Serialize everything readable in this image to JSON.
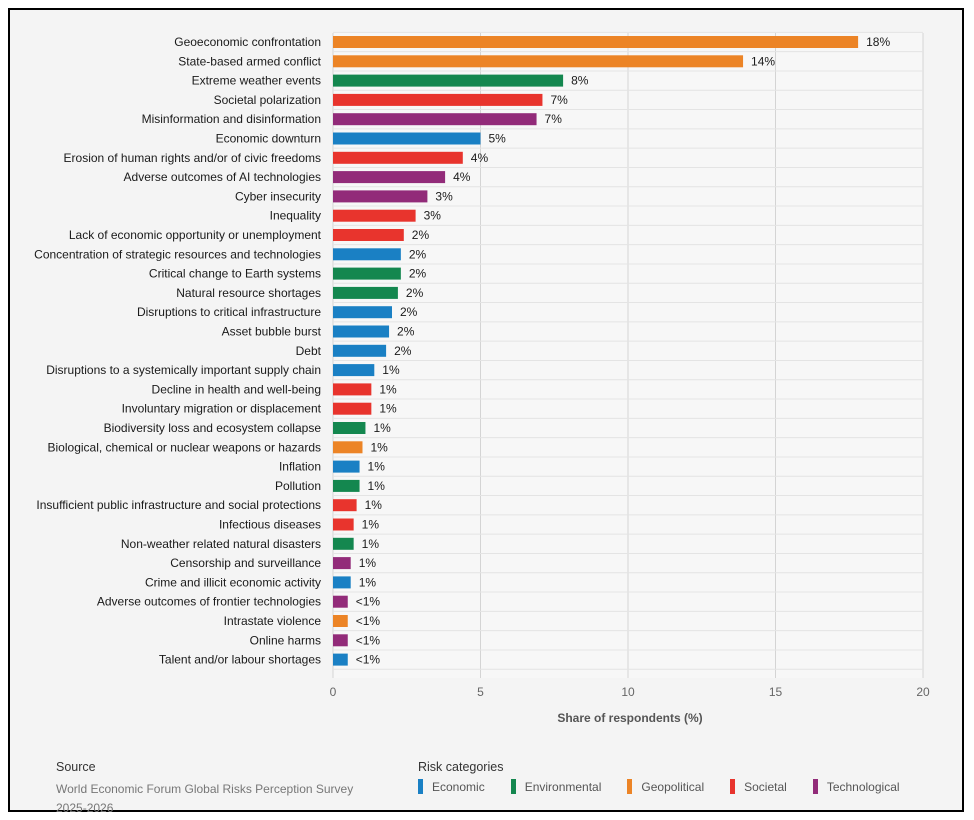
{
  "chart_data": {
    "type": "bar",
    "orientation": "horizontal",
    "xlabel": "Share of respondents (%)",
    "xlim": [
      0,
      20
    ],
    "xticks": [
      0,
      5,
      10,
      15,
      20
    ],
    "grid": true,
    "categories": [
      "Geoeconomic confrontation",
      "State-based armed conflict",
      "Extreme weather events",
      "Societal polarization",
      "Misinformation and disinformation",
      "Economic downturn",
      "Erosion of human rights and/or of civic freedoms",
      "Adverse outcomes of AI technologies",
      "Cyber insecurity",
      "Inequality",
      "Lack of economic opportunity or unemployment",
      "Concentration of strategic resources and technologies",
      "Critical change to Earth systems",
      "Natural resource shortages",
      "Disruptions to critical infrastructure",
      "Asset bubble burst",
      "Debt",
      "Disruptions to a systemically important supply chain",
      "Decline in health and well-being",
      "Involuntary migration or displacement",
      "Biodiversity loss and ecosystem collapse",
      "Biological, chemical or nuclear weapons or hazards",
      "Inflation",
      "Pollution",
      "Insufficient public infrastructure and social protections",
      "Infectious diseases",
      "Non-weather related natural disasters",
      "Censorship and surveillance",
      "Crime and illicit economic activity",
      "Adverse outcomes of frontier technologies",
      "Intrastate violence",
      "Online harms",
      "Talent and/or labour shortages"
    ],
    "values": [
      17.8,
      13.9,
      7.8,
      7.1,
      6.9,
      5.0,
      4.4,
      3.8,
      3.2,
      2.8,
      2.4,
      2.3,
      2.3,
      2.2,
      2.0,
      1.9,
      1.8,
      1.4,
      1.3,
      1.3,
      1.1,
      1.0,
      0.9,
      0.9,
      0.8,
      0.7,
      0.7,
      0.6,
      0.6,
      0.5,
      0.5,
      0.5,
      0.5
    ],
    "value_labels": [
      "18%",
      "14%",
      "8%",
      "7%",
      "7%",
      "5%",
      "4%",
      "4%",
      "3%",
      "3%",
      "2%",
      "2%",
      "2%",
      "2%",
      "2%",
      "2%",
      "2%",
      "1%",
      "1%",
      "1%",
      "1%",
      "1%",
      "1%",
      "1%",
      "1%",
      "1%",
      "1%",
      "1%",
      "1%",
      "<1%",
      "<1%",
      "<1%",
      "<1%"
    ],
    "risk_category": [
      "Geopolitical",
      "Geopolitical",
      "Environmental",
      "Societal",
      "Technological",
      "Economic",
      "Societal",
      "Technological",
      "Technological",
      "Societal",
      "Societal",
      "Economic",
      "Environmental",
      "Environmental",
      "Economic",
      "Economic",
      "Economic",
      "Economic",
      "Societal",
      "Societal",
      "Environmental",
      "Geopolitical",
      "Economic",
      "Environmental",
      "Societal",
      "Societal",
      "Environmental",
      "Technological",
      "Economic",
      "Technological",
      "Geopolitical",
      "Technological",
      "Economic"
    ],
    "category_colors": {
      "Economic": "#1a80c4",
      "Environmental": "#14874f",
      "Geopolitical": "#ec8426",
      "Societal": "#e8342d",
      "Technological": "#922b79"
    }
  },
  "footer": {
    "source_heading": "Source",
    "source_text": "World Economic Forum Global Risks Perception Survey 2025-2026"
  },
  "legend": {
    "heading": "Risk categories",
    "items": [
      {
        "label": "Economic",
        "color": "#1a80c4"
      },
      {
        "label": "Environmental",
        "color": "#14874f"
      },
      {
        "label": "Geopolitical",
        "color": "#ec8426"
      },
      {
        "label": "Societal",
        "color": "#e8342d"
      },
      {
        "label": "Technological",
        "color": "#922b79"
      }
    ]
  }
}
